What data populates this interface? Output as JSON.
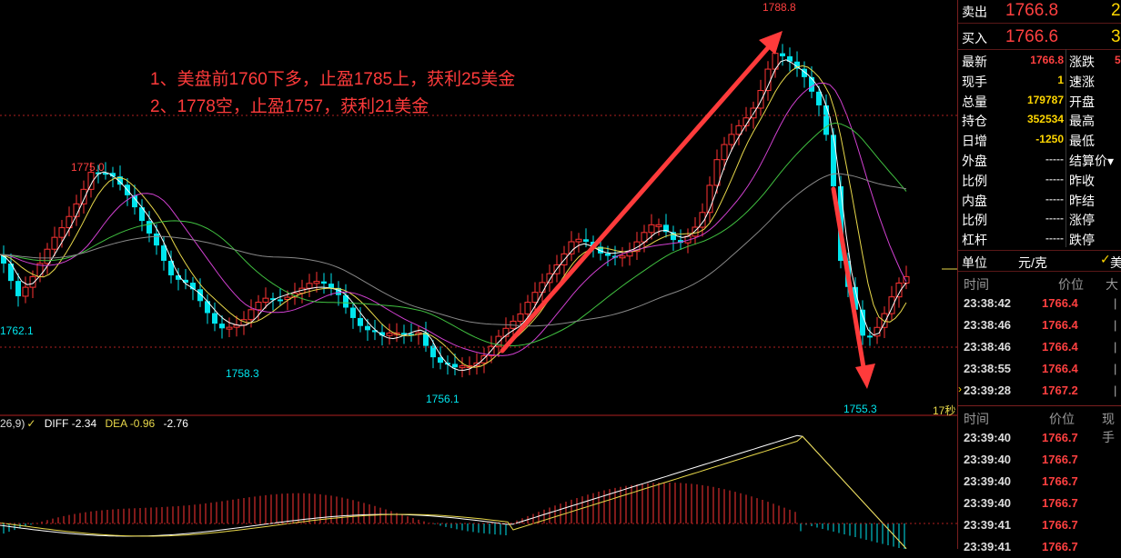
{
  "chart": {
    "high_label": "1788.8",
    "low_label": "1755.3",
    "labels": [
      "1775.0",
      "1762.1",
      "1758.3",
      "1756.1"
    ],
    "annotations": [
      "1、美盘前1760下多，止盈1785上，获利25美金",
      "2、1778空，止盈1757，获利21美金"
    ],
    "timer": "17秒",
    "colors": {
      "up": "#ff3333",
      "down": "#00e5ee",
      "annotation": "#ff3b3b",
      "arrow": "#ff3b3b"
    }
  },
  "macd": {
    "legend_prefix": "26,9)",
    "legend_chevron": "✓",
    "diff": "DIFF -2.34",
    "dea": "DEA -0.96",
    "macd_value": "-2.76"
  },
  "quote": {
    "sell_label": "卖出",
    "sell_price": "1766.8",
    "sell_qty": "2",
    "buy_label": "买入",
    "buy_price": "1766.6",
    "buy_qty": "3"
  },
  "stats": [
    {
      "l1": "最新",
      "v1": "1766.8",
      "c1": "vred",
      "l2": "涨跌",
      "v2": "5"
    },
    {
      "l1": "现手",
      "v1": "1",
      "c1": "vyel",
      "l2": "速涨",
      "v2": ""
    },
    {
      "l1": "总量",
      "v1": "179787",
      "c1": "vyel",
      "l2": "开盘",
      "v2": ""
    },
    {
      "l1": "持仓",
      "v1": "352534",
      "c1": "vyel",
      "l2": "最高",
      "v2": ""
    },
    {
      "l1": "日增",
      "v1": "-1250",
      "c1": "vyel",
      "l2": "最低",
      "v2": ""
    },
    {
      "l1": "外盘",
      "v1": "-----",
      "c1": "vgrey",
      "l2": "结算价▾",
      "v2": ""
    },
    {
      "l1": "比例",
      "v1": "-----",
      "c1": "vgrey",
      "l2": "昨收",
      "v2": ""
    },
    {
      "l1": "内盘",
      "v1": "-----",
      "c1": "vgrey",
      "l2": "昨结",
      "v2": ""
    },
    {
      "l1": "比例",
      "v1": "-----",
      "c1": "vgrey",
      "l2": "涨停",
      "v2": ""
    },
    {
      "l1": "杠杆",
      "v1": "-----",
      "c1": "vgrey",
      "l2": "跌停",
      "v2": ""
    }
  ],
  "unit": {
    "label": "单位",
    "value": "元/克",
    "check": "✓",
    "extra": "美"
  },
  "ticks1": {
    "headers": [
      "时间",
      "价位",
      "大"
    ],
    "rows": [
      {
        "time": "23:38:42",
        "price": "1766.4",
        "mark": "|"
      },
      {
        "time": "23:38:46",
        "price": "1766.4",
        "mark": "|"
      },
      {
        "time": "23:38:46",
        "price": "1766.4",
        "mark": "|"
      },
      {
        "time": "23:38:55",
        "price": "1766.4",
        "mark": "|"
      },
      {
        "time": "23:39:28",
        "price": "1767.2",
        "mark": "|"
      }
    ]
  },
  "ticks2": {
    "headers": [
      "时间",
      "价位",
      "现手"
    ],
    "rows": [
      {
        "time": "23:39:40",
        "price": "1766.7"
      },
      {
        "time": "23:39:40",
        "price": "1766.7"
      },
      {
        "time": "23:39:40",
        "price": "1766.7"
      },
      {
        "time": "23:39:40",
        "price": "1766.7"
      },
      {
        "time": "23:39:41",
        "price": "1766.7"
      },
      {
        "time": "23:39:41",
        "price": "1766.7"
      }
    ]
  }
}
